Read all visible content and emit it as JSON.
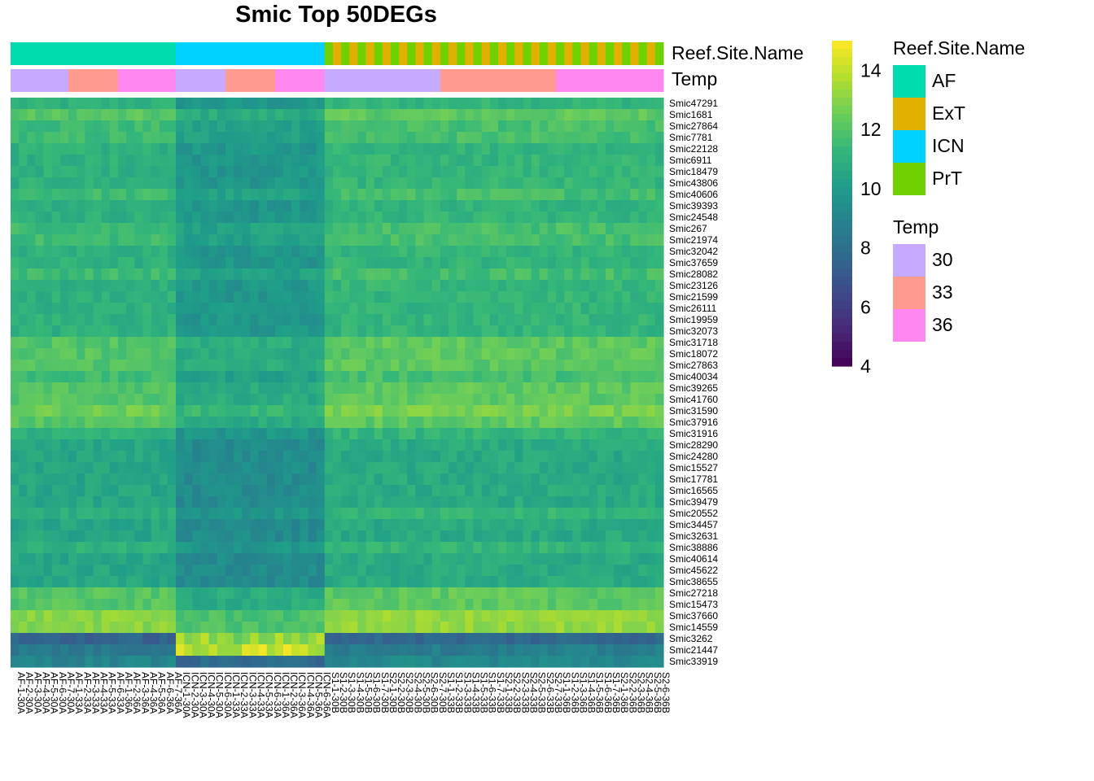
{
  "chart_data": {
    "type": "heatmap",
    "title": "Smic Top 50DEGs",
    "rows": [
      "Smic47291",
      "Smic1681",
      "Smic27864",
      "Smic7781",
      "Smic22128",
      "Smic6911",
      "Smic18479",
      "Smic43806",
      "Smic40606",
      "Smic39393",
      "Smic24548",
      "Smic267",
      "Smic21974",
      "Smic32042",
      "Smic37659",
      "Smic28082",
      "Smic23126",
      "Smic21599",
      "Smic26111",
      "Smic19959",
      "Smic32073",
      "Smic31718",
      "Smic18072",
      "Smic27863",
      "Smic40034",
      "Smic39265",
      "Smic41760",
      "Smic31590",
      "Smic37916",
      "Smic31916",
      "Smic28290",
      "Smic24280",
      "Smic15527",
      "Smic17781",
      "Smic16565",
      "Smic39479",
      "Smic20552",
      "Smic34457",
      "Smic32631",
      "Smic38886",
      "Smic40614",
      "Smic45622",
      "Smic38655",
      "Smic27218",
      "Smic15473",
      "Smic37660",
      "Smic14559",
      "Smic3262",
      "Smic21447",
      "Smic33919"
    ],
    "column_groups": [
      {
        "site": "AF",
        "temp": "30",
        "count": 7
      },
      {
        "site": "AF",
        "temp": "33",
        "count": 6
      },
      {
        "site": "AF",
        "temp": "36",
        "count": 7
      },
      {
        "site": "ICN",
        "temp": "30",
        "count": 6
      },
      {
        "site": "ICN",
        "temp": "33",
        "count": 6
      },
      {
        "site": "ICN",
        "temp": "36",
        "count": 6
      },
      {
        "site": "ExT/PrT",
        "temp": "30",
        "count": 14
      },
      {
        "site": "ExT/PrT",
        "temp": "33",
        "count": 14
      },
      {
        "site": "ExT/PrT",
        "temp": "36",
        "count": 13
      }
    ],
    "row_base_values": [
      11,
      12,
      11.5,
      11.5,
      11,
      11,
      11,
      11,
      11.5,
      11,
      11,
      11.5,
      11.5,
      11,
      11,
      11.5,
      11,
      11,
      11,
      11,
      11,
      12,
      12,
      12,
      11.5,
      12,
      12,
      12.5,
      12,
      11,
      10.5,
      10.5,
      10.5,
      10.5,
      10.5,
      10.5,
      11,
      10.5,
      10.5,
      11,
      10.5,
      10.5,
      10.5,
      12,
      12,
      13,
      13,
      7.5,
      8.5,
      9
    ],
    "group_offsets": {
      "AF": 0,
      "ICN": -1.2,
      "ExT/PrT": 0.2
    },
    "low_rows_icn_high": [
      47,
      48
    ],
    "color_scale": {
      "min": 4,
      "max": 15,
      "ticks": [
        4,
        6,
        8,
        10,
        12,
        14
      ],
      "palette": "viridis"
    },
    "annotation_labels": {
      "site": "Reef.Site.Name",
      "temp": "Temp"
    },
    "legend": {
      "site_title": "Reef.Site.Name",
      "site_items": [
        {
          "label": "AF",
          "color": "#00DCAE"
        },
        {
          "label": "ExT",
          "color": "#E0B100"
        },
        {
          "label": "ICN",
          "color": "#00D2FF"
        },
        {
          "label": "PrT",
          "color": "#6FD100"
        }
      ],
      "temp_title": "Temp",
      "temp_items": [
        {
          "label": "30",
          "color": "#C5AAFF"
        },
        {
          "label": "33",
          "color": "#FF9A8F"
        },
        {
          "label": "36",
          "color": "#FF88F0"
        }
      ]
    },
    "column_labels": [
      "AF-1-30A",
      "AF-2-30A",
      "AF-3-30A",
      "AF-4-30A",
      "AF-5-30A",
      "AF-6-30A",
      "AF-7-30A",
      "AF-1-33A",
      "AF-2-33A",
      "AF-3-33A",
      "AF-4-33A",
      "AF-5-33A",
      "AF-6-33A",
      "AF-1-36A",
      "AF-2-36A",
      "AF-3-36A",
      "AF-4-36A",
      "AF-5-36A",
      "AF-6-36A",
      "AF-7-36A",
      "ICN-1-30A",
      "ICN-2-30A",
      "ICN-3-30A",
      "ICN-4-30A",
      "ICN-5-30A",
      "ICN-6-30A",
      "ICN-1-33A",
      "ICN-2-33A",
      "ICN-3-33A",
      "ICN-4-33A",
      "ICN-5-33A",
      "ICN-6-33A",
      "ICN-1-36A",
      "ICN-2-36A",
      "ICN-3-36A",
      "ICN-4-36A",
      "ICN-5-36A",
      "ICN-6-36A",
      "S1-1-30B",
      "S1-2-30B",
      "S1-3-30B",
      "S1-4-30B",
      "S1-5-30B",
      "S1-6-30B",
      "S1-7-30B",
      "S2-1-30B",
      "S2-2-30B",
      "S2-3-30B",
      "S2-4-30B",
      "S2-5-30B",
      "S2-6-30B",
      "S2-7-30B",
      "S1-1-33B",
      "S1-2-33B",
      "S1-3-33B",
      "S1-4-33B",
      "S1-5-33B",
      "S1-6-33B",
      "S1-7-33B",
      "S2-1-33B",
      "S2-2-33B",
      "S2-3-33B",
      "S2-4-33B",
      "S2-5-33B",
      "S2-6-33B",
      "S2-7-33B",
      "S1-1-36B",
      "S1-2-36B",
      "S1-3-36B",
      "S1-4-36B",
      "S1-5-36B",
      "S1-6-36B",
      "S1-7-36B",
      "S2-1-36B",
      "S2-2-36B",
      "S2-3-36B",
      "S2-4-36B",
      "S2-5-36B",
      "S2-6-36B"
    ]
  }
}
